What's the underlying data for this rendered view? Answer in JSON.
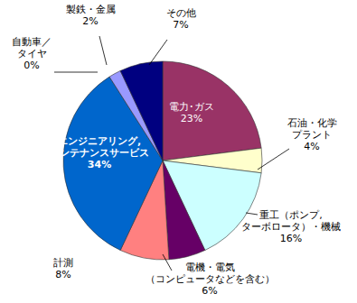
{
  "chart_data": {
    "type": "pie",
    "categories": [
      "電力･ガス",
      "石油・化学\nプラント",
      "重工（ポンプ,\nターボロータ）・機械",
      "電機・電気\n（コンピュータなどを含む）",
      "計測",
      "エンジニアリング,\nメンテナンスサービス",
      "自動車／\nタイヤ",
      "製鉄・金属",
      "その他"
    ],
    "values": [
      23,
      4,
      16,
      6,
      8,
      34,
      0,
      2,
      7
    ],
    "value_labels": [
      "23%",
      "4%",
      "16%",
      "6%",
      "8%",
      "34%",
      "0%",
      "2%",
      "7%"
    ],
    "colors": [
      "#993366",
      "#FFFFCC",
      "#CCFFFF",
      "#660066",
      "#FF8080",
      "#0066CC",
      "#CCCCFF",
      "#9999FF",
      "#000080"
    ],
    "data_labels": true
  }
}
